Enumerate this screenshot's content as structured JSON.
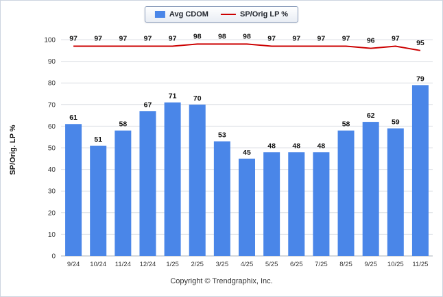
{
  "legend": {
    "items": [
      {
        "label": "Avg CDOM",
        "type": "bar",
        "color": "#4a86e8"
      },
      {
        "label": "SP/Orig LP %",
        "type": "line",
        "color": "#cc0000"
      }
    ]
  },
  "axis": {
    "y_title": "SP/Orig. LP %"
  },
  "footer": {
    "text": "Copyright © Trendgraphix, Inc."
  },
  "chart_data": {
    "type": "bar",
    "title": "",
    "xlabel": "",
    "ylabel": "SP/Orig. LP %",
    "ylim": [
      0,
      100
    ],
    "ytick_step": 10,
    "grid": true,
    "legend_position": "top",
    "categories": [
      "9/24",
      "10/24",
      "11/24",
      "12/24",
      "1/25",
      "2/25",
      "3/25",
      "4/25",
      "5/25",
      "6/25",
      "7/25",
      "8/25",
      "9/25",
      "10/25",
      "11/25"
    ],
    "series": [
      {
        "name": "Avg CDOM",
        "type": "bar",
        "color": "#4a86e8",
        "values": [
          61,
          51,
          58,
          67,
          71,
          70,
          53,
          45,
          48,
          48,
          48,
          58,
          62,
          59,
          79
        ]
      },
      {
        "name": "SP/Orig LP %",
        "type": "line",
        "color": "#cc0000",
        "values": [
          97,
          97,
          97,
          97,
          97,
          98,
          98,
          98,
          97,
          97,
          97,
          97,
          96,
          97,
          95
        ]
      }
    ]
  }
}
